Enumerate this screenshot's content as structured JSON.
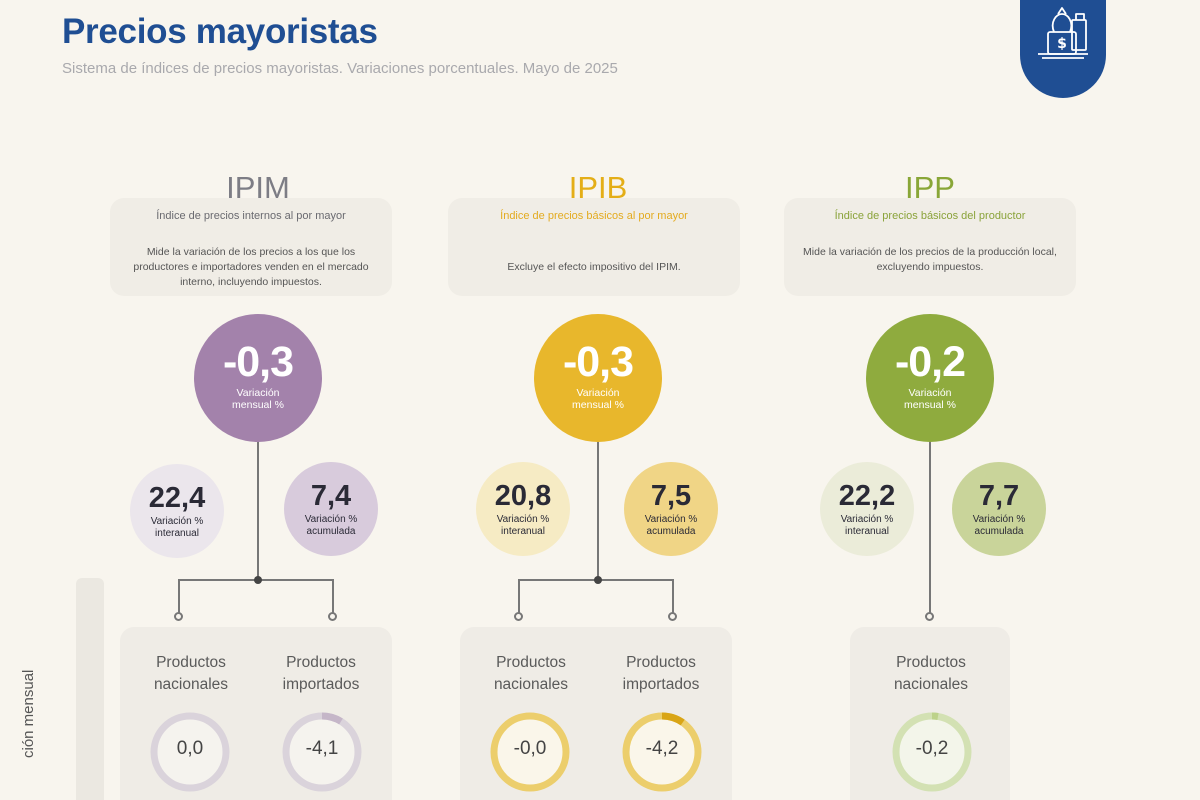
{
  "header": {
    "title": "Precios mayoristas",
    "subtitle": "Sistema de índices de precios mayoristas. Variaciones porcentuales. Mayo de 2025",
    "logo_icon": "money-bag-icon"
  },
  "side_label": "ción mensual",
  "indices": [
    {
      "code": "IPIM",
      "name": "Índice de precios internos al por mayor",
      "description": "Mide la variación de los precios a los que los productores e importadores venden en el mercado interno, incluyendo impuestos.",
      "monthly": "-0,3",
      "monthly_label": "Variación mensual %",
      "yoy": "22,4",
      "yoy_label": "Variación % interanual",
      "accum": "7,4",
      "accum_label": "Variación % acumulada",
      "products": [
        {
          "label": "Productos nacionales",
          "value": "0,0"
        },
        {
          "label": "Productos importados",
          "value": "-4,1"
        }
      ],
      "colors": {
        "main": "#a382ab",
        "code": "#7d7d85",
        "name": "#6a6a70",
        "yoy_bg": "#ebe6ec",
        "accum_bg": "#d8cbdc",
        "ring": "#dad3db"
      }
    },
    {
      "code": "IPIB",
      "name": "Índice de precios básicos al por mayor",
      "description": "Excluye el efecto impositivo del IPIM.",
      "monthly": "-0,3",
      "monthly_label": "Variación mensual %",
      "yoy": "20,8",
      "yoy_label": "Variación % interanual",
      "accum": "7,5",
      "accum_label": "Variación % acumulada",
      "products": [
        {
          "label": "Productos nacionales",
          "value": "-0,0"
        },
        {
          "label": "Productos importados",
          "value": "-4,2"
        }
      ],
      "colors": {
        "main": "#e8b72c",
        "code": "#e4ae17",
        "name": "#e3ab1f",
        "yoy_bg": "#f6ebc4",
        "accum_bg": "#f0d586",
        "ring": "#ecce6c"
      }
    },
    {
      "code": "IPP",
      "name": "Índice de precios básicos del productor",
      "description": "Mide la variación de los precios de la producción local, excluyendo impuestos.",
      "monthly": "-0,2",
      "monthly_label": "Variación mensual %",
      "yoy": "22,2",
      "yoy_label": "Variación % interanual",
      "accum": "7,7",
      "accum_label": "Variación % acumulada",
      "products": [
        {
          "label": "Productos nacionales",
          "value": "-0,2"
        }
      ],
      "colors": {
        "main": "#8fab3e",
        "code": "#89a637",
        "name": "#8aa33a",
        "yoy_bg": "#ebecd9",
        "accum_bg": "#c9d49a",
        "ring": "#d3e1b3"
      }
    }
  ]
}
